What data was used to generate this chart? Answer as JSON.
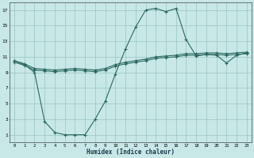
{
  "xlabel": "Humidex (Indice chaleur)",
  "bg_color": "#c8e8e8",
  "grid_color": "#a0c8c8",
  "line_color": "#2a6860",
  "xlim": [
    -0.5,
    23.5
  ],
  "ylim": [
    0,
    18
  ],
  "xticks": [
    0,
    1,
    2,
    3,
    4,
    5,
    6,
    7,
    8,
    9,
    10,
    11,
    12,
    13,
    14,
    15,
    16,
    17,
    18,
    19,
    20,
    21,
    22,
    23
  ],
  "yticks": [
    1,
    3,
    5,
    7,
    9,
    11,
    13,
    15,
    17
  ],
  "line1_x": [
    0,
    1,
    2,
    3,
    4,
    5,
    6,
    7,
    8,
    9,
    10,
    11,
    12,
    13,
    14,
    15,
    16,
    17,
    18,
    19,
    20,
    21,
    22,
    23
  ],
  "line1_y": [
    10.3,
    9.9,
    9.3,
    9.2,
    9.1,
    9.2,
    9.3,
    9.2,
    9.1,
    9.3,
    9.8,
    10.1,
    10.3,
    10.5,
    10.8,
    10.9,
    11.0,
    11.2,
    11.2,
    11.3,
    11.3,
    11.2,
    11.3,
    11.4
  ],
  "line2_x": [
    0,
    1,
    2,
    3,
    4,
    5,
    6,
    7,
    8,
    9,
    10,
    11,
    12,
    13,
    14,
    15,
    16,
    17,
    18,
    19,
    20,
    21,
    22,
    23
  ],
  "line2_y": [
    10.5,
    10.1,
    9.5,
    9.4,
    9.3,
    9.4,
    9.5,
    9.4,
    9.3,
    9.5,
    10.0,
    10.3,
    10.5,
    10.7,
    11.0,
    11.1,
    11.2,
    11.4,
    11.4,
    11.5,
    11.5,
    11.4,
    11.5,
    11.6
  ],
  "line3_x": [
    0,
    1,
    2,
    3,
    4,
    5,
    6,
    7,
    8,
    9,
    10,
    11,
    12,
    13,
    14,
    15,
    16,
    17,
    18,
    19,
    20,
    21,
    22,
    23
  ],
  "line3_y": [
    10.5,
    10.0,
    9.0,
    2.7,
    1.3,
    1.0,
    1.0,
    1.0,
    3.0,
    5.3,
    8.8,
    12.0,
    14.8,
    17.0,
    17.2,
    16.8,
    17.2,
    13.2,
    11.1,
    11.3,
    11.2,
    10.2,
    11.2,
    11.5
  ]
}
